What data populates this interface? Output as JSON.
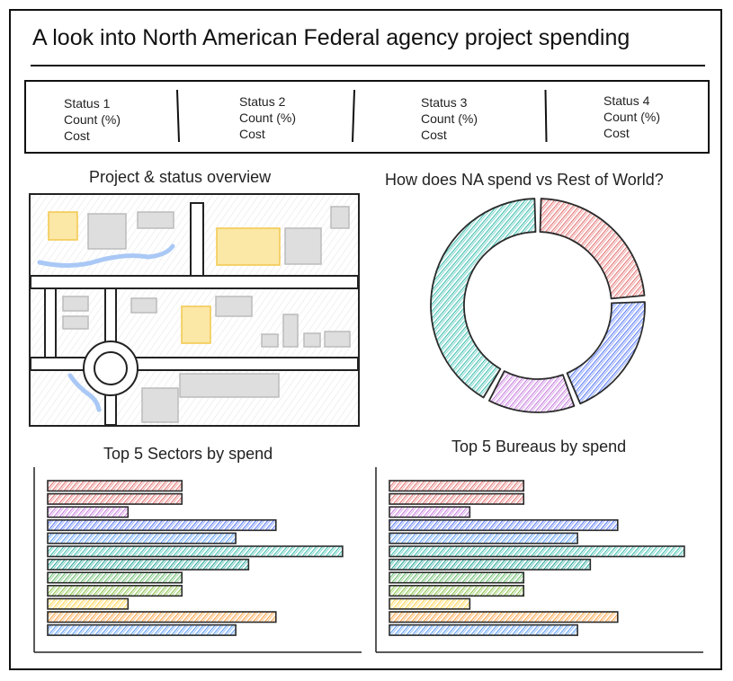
{
  "header": {
    "title": "A look into North American Federal agency project spending"
  },
  "status_cards": [
    {
      "name": "Status 1",
      "count": "Count (%)",
      "cost": "Cost"
    },
    {
      "name": "Status 2",
      "count": "Count (%)",
      "cost": "Cost"
    },
    {
      "name": "Status 3",
      "count": "Count (%)",
      "cost": "Cost"
    },
    {
      "name": "Status 4",
      "count": "Count (%)",
      "cost": "Cost"
    }
  ],
  "map_panel": {
    "title": "Project & status overview",
    "colors": {
      "road": "#ffffff",
      "block": "#d9d9d9",
      "highlight": "#f7d774",
      "water": "#a9c8f5",
      "outline": "#222222"
    }
  },
  "donut_panel": {
    "title": "How does NA spend vs Rest of World?",
    "chart_data": {
      "type": "pie",
      "title": "How does NA spend vs Rest of World?",
      "slices": [
        {
          "value": 24,
          "color": "#e57373"
        },
        {
          "value": 20,
          "color": "#5c7cfa"
        },
        {
          "value": 14,
          "color": "#c77dde"
        },
        {
          "value": 42,
          "color": "#3fbfb0"
        }
      ]
    }
  },
  "sectors_panel": {
    "title": "Top 5 Sectors by spend",
    "chart_data": {
      "type": "bar",
      "orientation": "horizontal",
      "title": "Top 5 Sectors by spend",
      "xlim": [
        0,
        330
      ],
      "bars": [
        {
          "value": 147,
          "color": "#e57373"
        },
        {
          "value": 147,
          "color": "#e57373"
        },
        {
          "value": 88,
          "color": "#c77dde"
        },
        {
          "value": 250,
          "color": "#5c7cfa"
        },
        {
          "value": 206,
          "color": "#5c9cf5"
        },
        {
          "value": 323,
          "color": "#3fbfb0"
        },
        {
          "value": 220,
          "color": "#26a69a"
        },
        {
          "value": 147,
          "color": "#66bb6a"
        },
        {
          "value": 147,
          "color": "#8bc34a"
        },
        {
          "value": 88,
          "color": "#ffd54f"
        },
        {
          "value": 250,
          "color": "#ffa040"
        },
        {
          "value": 206,
          "color": "#5c9cf5"
        }
      ]
    }
  },
  "bureaus_panel": {
    "title": "Top 5 Bureaus by spend",
    "chart_data": {
      "type": "bar",
      "orientation": "horizontal",
      "title": "Top 5 Bureaus by spend",
      "xlim": [
        0,
        330
      ],
      "bars": [
        {
          "value": 147,
          "color": "#e57373"
        },
        {
          "value": 147,
          "color": "#e57373"
        },
        {
          "value": 88,
          "color": "#c77dde"
        },
        {
          "value": 250,
          "color": "#5c7cfa"
        },
        {
          "value": 206,
          "color": "#5c9cf5"
        },
        {
          "value": 323,
          "color": "#3fbfb0"
        },
        {
          "value": 220,
          "color": "#26a69a"
        },
        {
          "value": 147,
          "color": "#66bb6a"
        },
        {
          "value": 147,
          "color": "#8bc34a"
        },
        {
          "value": 88,
          "color": "#ffd54f"
        },
        {
          "value": 250,
          "color": "#ffa040"
        },
        {
          "value": 206,
          "color": "#5c9cf5"
        }
      ]
    }
  }
}
